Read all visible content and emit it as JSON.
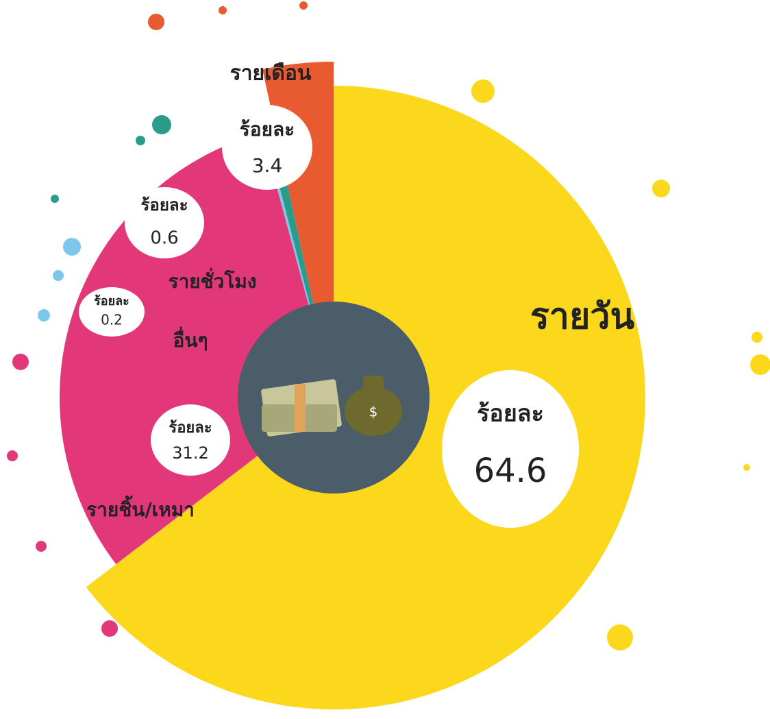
{
  "chart_data": {
    "type": "pie",
    "categories": [
      "รายวัน",
      "รายชิ้น/เหมา",
      "อื่นๆ",
      "รายชั่วโมง",
      "รายเดือน"
    ],
    "values": [
      64.6,
      31.2,
      0.2,
      0.6,
      3.4
    ],
    "colors": [
      "#fcd81c",
      "#e2387a",
      "#7dc8ea",
      "#2b9c8a",
      "#e85a30"
    ],
    "unit_label": "ร้อยละ"
  }
}
